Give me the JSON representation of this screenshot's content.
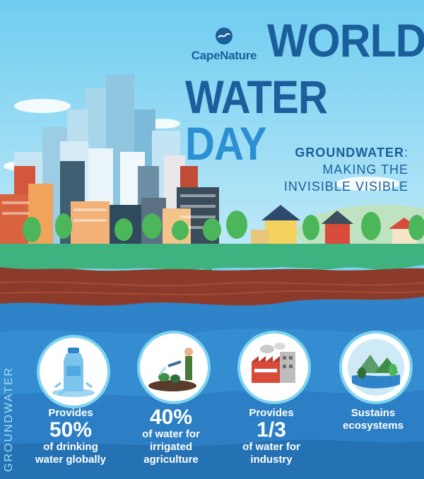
{
  "brand": {
    "name": "CapeNature"
  },
  "title": {
    "line1": "WORLD",
    "line2_a": "WATER",
    "line2_b": "DAY"
  },
  "subtitle": {
    "bold": "GROUNDWATER",
    "colon": ":",
    "line2": "MAKING THE",
    "line3": "INVISIBLE VISIBLE"
  },
  "side_label": "GROUNDWATER",
  "features": [
    {
      "pre": "Provides",
      "big": "50%",
      "post1": "of drinking",
      "post2": "water globally",
      "icon": "water-bottle-icon"
    },
    {
      "pre": "",
      "big": "40%",
      "post1": "of water for",
      "post2": "irrigated",
      "post3": "agriculture",
      "icon": "farmer-watering-icon"
    },
    {
      "pre": "Provides",
      "big": "1/3",
      "post1": "of water for",
      "post2": "industry",
      "icon": "factory-icon"
    },
    {
      "pre": "Sustains",
      "post1": "ecosystems",
      "icon": "landscape-icon"
    }
  ],
  "colors": {
    "brand": "#1a5f9c",
    "accent": "#2b8fd1",
    "grass": "#3fb37f",
    "soil": "#8c3b2a",
    "water": "#2f84c9"
  }
}
